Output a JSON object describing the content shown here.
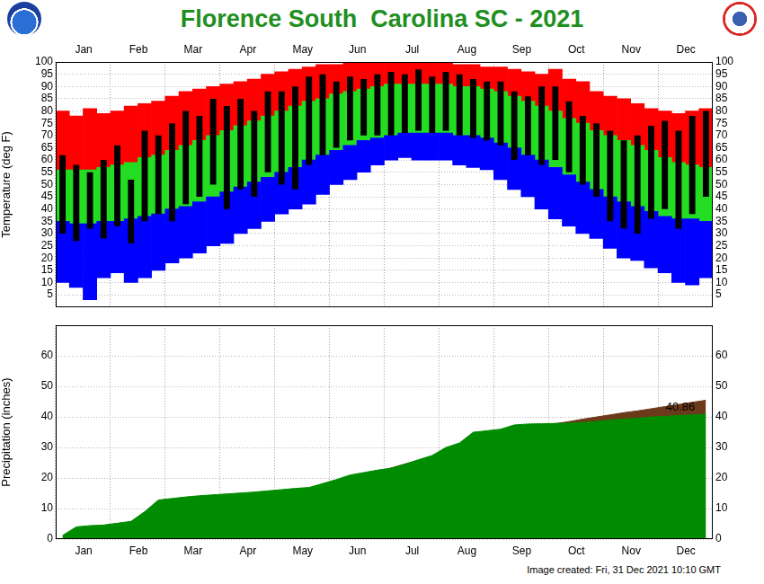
{
  "footer": "Image created: Fri, 31 Dec 2021 10:10 GMT",
  "chart_data": [
    {
      "type": "bar",
      "title": "Florence South  Carolina SC - 2021",
      "ylabel": "Temperature (deg F)",
      "categories": [
        null,
        null,
        "Jan",
        null,
        null,
        null,
        "Feb",
        null,
        null,
        null,
        "Mar",
        null,
        null,
        null,
        "Apr",
        null,
        null,
        null,
        "May",
        null,
        null,
        null,
        "Jun",
        null,
        null,
        null,
        "Jul",
        null,
        null,
        null,
        "Aug",
        null,
        null,
        null,
        "Sep",
        null,
        null,
        null,
        "Oct",
        null,
        null,
        null,
        "Nov",
        null,
        null,
        null,
        "Dec",
        null
      ],
      "series": [
        {
          "color": "#ff0000",
          "values": [
            [
              56,
              80
            ],
            [
              56,
              78
            ],
            [
              56,
              81
            ],
            [
              57,
              79
            ],
            [
              58,
              80
            ],
            [
              59,
              82
            ],
            [
              61,
              83
            ],
            [
              62,
              84
            ],
            [
              64,
              86
            ],
            [
              66,
              88
            ],
            [
              68,
              89
            ],
            [
              70,
              90
            ],
            [
              72,
              91
            ],
            [
              74,
              92
            ],
            [
              76,
              93
            ],
            [
              78,
              95
            ],
            [
              80,
              96
            ],
            [
              82,
              97
            ],
            [
              84,
              98
            ],
            [
              85,
              99
            ],
            [
              87,
              99
            ],
            [
              88,
              100
            ],
            [
              89,
              100
            ],
            [
              90,
              100
            ],
            [
              91,
              100
            ],
            [
              91,
              100
            ],
            [
              91,
              100
            ],
            [
              91,
              100
            ],
            [
              91,
              100
            ],
            [
              90,
              99
            ],
            [
              90,
              99
            ],
            [
              89,
              98
            ],
            [
              88,
              98
            ],
            [
              86,
              97
            ],
            [
              84,
              96
            ],
            [
              82,
              95
            ],
            [
              80,
              97
            ],
            [
              77,
              93
            ],
            [
              75,
              92
            ],
            [
              72,
              88
            ],
            [
              70,
              86
            ],
            [
              68,
              85
            ],
            [
              66,
              83
            ],
            [
              64,
              81
            ],
            [
              61,
              80
            ],
            [
              59,
              79
            ],
            [
              58,
              80
            ],
            [
              57,
              81
            ]
          ]
        },
        {
          "color": "#22dd22",
          "values": [
            [
              35,
              56
            ],
            [
              34,
              56
            ],
            [
              34,
              56
            ],
            [
              35,
              57
            ],
            [
              35,
              58
            ],
            [
              36,
              59
            ],
            [
              37,
              61
            ],
            [
              38,
              62
            ],
            [
              40,
              64
            ],
            [
              41,
              66
            ],
            [
              43,
              68
            ],
            [
              45,
              70
            ],
            [
              47,
              72
            ],
            [
              49,
              74
            ],
            [
              51,
              76
            ],
            [
              53,
              78
            ],
            [
              55,
              80
            ],
            [
              57,
              82
            ],
            [
              60,
              84
            ],
            [
              62,
              85
            ],
            [
              64,
              87
            ],
            [
              66,
              88
            ],
            [
              68,
              89
            ],
            [
              69,
              90
            ],
            [
              70,
              91
            ],
            [
              71,
              91
            ],
            [
              71,
              91
            ],
            [
              71,
              91
            ],
            [
              71,
              91
            ],
            [
              70,
              90
            ],
            [
              70,
              90
            ],
            [
              69,
              89
            ],
            [
              67,
              88
            ],
            [
              65,
              86
            ],
            [
              62,
              84
            ],
            [
              60,
              82
            ],
            [
              57,
              80
            ],
            [
              54,
              77
            ],
            [
              51,
              75
            ],
            [
              48,
              72
            ],
            [
              45,
              70
            ],
            [
              43,
              68
            ],
            [
              41,
              66
            ],
            [
              39,
              64
            ],
            [
              37,
              61
            ],
            [
              36,
              59
            ],
            [
              36,
              58
            ],
            [
              35,
              57
            ]
          ]
        },
        {
          "color": "#0000ff",
          "values": [
            [
              10,
              35
            ],
            [
              8,
              34
            ],
            [
              3,
              34
            ],
            [
              12,
              35
            ],
            [
              14,
              35
            ],
            [
              10,
              36
            ],
            [
              12,
              37
            ],
            [
              15,
              38
            ],
            [
              18,
              40
            ],
            [
              20,
              41
            ],
            [
              22,
              43
            ],
            [
              25,
              45
            ],
            [
              26,
              47
            ],
            [
              30,
              49
            ],
            [
              32,
              51
            ],
            [
              35,
              53
            ],
            [
              38,
              55
            ],
            [
              40,
              57
            ],
            [
              42,
              60
            ],
            [
              46,
              62
            ],
            [
              50,
              64
            ],
            [
              52,
              66
            ],
            [
              55,
              68
            ],
            [
              58,
              69
            ],
            [
              60,
              70
            ],
            [
              61,
              71
            ],
            [
              60,
              71
            ],
            [
              60,
              71
            ],
            [
              60,
              71
            ],
            [
              58,
              70
            ],
            [
              57,
              70
            ],
            [
              56,
              69
            ],
            [
              52,
              67
            ],
            [
              48,
              65
            ],
            [
              45,
              62
            ],
            [
              40,
              60
            ],
            [
              36,
              57
            ],
            [
              33,
              54
            ],
            [
              30,
              51
            ],
            [
              28,
              48
            ],
            [
              24,
              45
            ],
            [
              20,
              43
            ],
            [
              19,
              41
            ],
            [
              16,
              39
            ],
            [
              14,
              37
            ],
            [
              10,
              36
            ],
            [
              9,
              36
            ],
            [
              12,
              35
            ]
          ]
        },
        {
          "color": "#000000",
          "values": [
            [
              30,
              62
            ],
            [
              27,
              58
            ],
            [
              32,
              55
            ],
            [
              28,
              60
            ],
            [
              33,
              66
            ],
            [
              26,
              52
            ],
            [
              35,
              72
            ],
            [
              38,
              70
            ],
            [
              35,
              75
            ],
            [
              42,
              80
            ],
            [
              45,
              78
            ],
            [
              50,
              85
            ],
            [
              40,
              82
            ],
            [
              48,
              85
            ],
            [
              45,
              80
            ],
            [
              55,
              88
            ],
            [
              50,
              88
            ],
            [
              48,
              90
            ],
            [
              58,
              94
            ],
            [
              62,
              95
            ],
            [
              65,
              92
            ],
            [
              68,
              94
            ],
            [
              70,
              93
            ],
            [
              70,
              95
            ],
            [
              70,
              96
            ],
            [
              71,
              95
            ],
            [
              72,
              97
            ],
            [
              71,
              94
            ],
            [
              72,
              96
            ],
            [
              70,
              95
            ],
            [
              69,
              93
            ],
            [
              68,
              92
            ],
            [
              66,
              92
            ],
            [
              60,
              88
            ],
            [
              62,
              86
            ],
            [
              58,
              90
            ],
            [
              60,
              90
            ],
            [
              55,
              84
            ],
            [
              50,
              78
            ],
            [
              45,
              75
            ],
            [
              35,
              72
            ],
            [
              32,
              68
            ],
            [
              30,
              70
            ],
            [
              36,
              74
            ],
            [
              40,
              76
            ],
            [
              32,
              72
            ],
            [
              38,
              78
            ],
            [
              45,
              80
            ]
          ]
        }
      ],
      "ylim": [
        0,
        100
      ],
      "yticks": [
        5,
        10,
        15,
        20,
        25,
        30,
        35,
        40,
        45,
        50,
        55,
        60,
        65,
        70,
        75,
        80,
        85,
        90,
        95,
        100
      ],
      "grid": true
    },
    {
      "type": "area",
      "ylabel": "Precipitation (inches)",
      "categories": [
        null,
        null,
        "Jan",
        null,
        null,
        null,
        "Feb",
        null,
        null,
        null,
        "Mar",
        null,
        null,
        null,
        "Apr",
        null,
        null,
        null,
        "May",
        null,
        null,
        null,
        "Jun",
        null,
        null,
        null,
        "Jul",
        null,
        null,
        null,
        "Aug",
        null,
        null,
        null,
        "Sep",
        null,
        null,
        null,
        "Oct",
        null,
        null,
        null,
        "Nov",
        null,
        null,
        null,
        "Dec",
        null
      ],
      "series": [
        {
          "color": "#008c00",
          "values": [
            1.2,
            4.0,
            4.4,
            4.6,
            5.2,
            5.8,
            9.0,
            12.8,
            13.3,
            13.8,
            14.2,
            14.5,
            14.8,
            15.1,
            15.4,
            15.8,
            16.2,
            16.6,
            16.9,
            18.2,
            19.5,
            21.0,
            21.8,
            22.6,
            23.2,
            24.5,
            26.0,
            27.4,
            30.0,
            31.5,
            35.0,
            35.5,
            36.0,
            37.4,
            37.7,
            37.8,
            37.9,
            38.0,
            38.2,
            38.5,
            39.0,
            39.3,
            39.6,
            40.0,
            40.2,
            40.5,
            40.7,
            40.86
          ]
        },
        {
          "color": "#6b3a1a",
          "values": [
            0.9,
            1.8,
            2.7,
            3.5,
            4.4,
            5.3,
            6.1,
            6.9,
            7.9,
            8.9,
            9.9,
            10.9,
            11.7,
            12.5,
            13.2,
            14.0,
            14.8,
            15.6,
            16.4,
            17.2,
            18.4,
            19.6,
            20.8,
            22.0,
            23.3,
            24.6,
            25.8,
            27.0,
            28.4,
            29.8,
            31.1,
            32.5,
            33.6,
            34.7,
            35.9,
            37.0,
            37.8,
            38.5,
            39.3,
            40.0,
            40.7,
            41.4,
            42.0,
            42.7,
            43.4,
            44.1,
            44.8,
            45.5
          ]
        }
      ],
      "ylim": [
        0,
        70
      ],
      "yticks": [
        0,
        10,
        20,
        30,
        40,
        50,
        60
      ],
      "grid": true,
      "annotations": [
        {
          "text": "40.86",
          "y": 40.86
        }
      ]
    }
  ]
}
